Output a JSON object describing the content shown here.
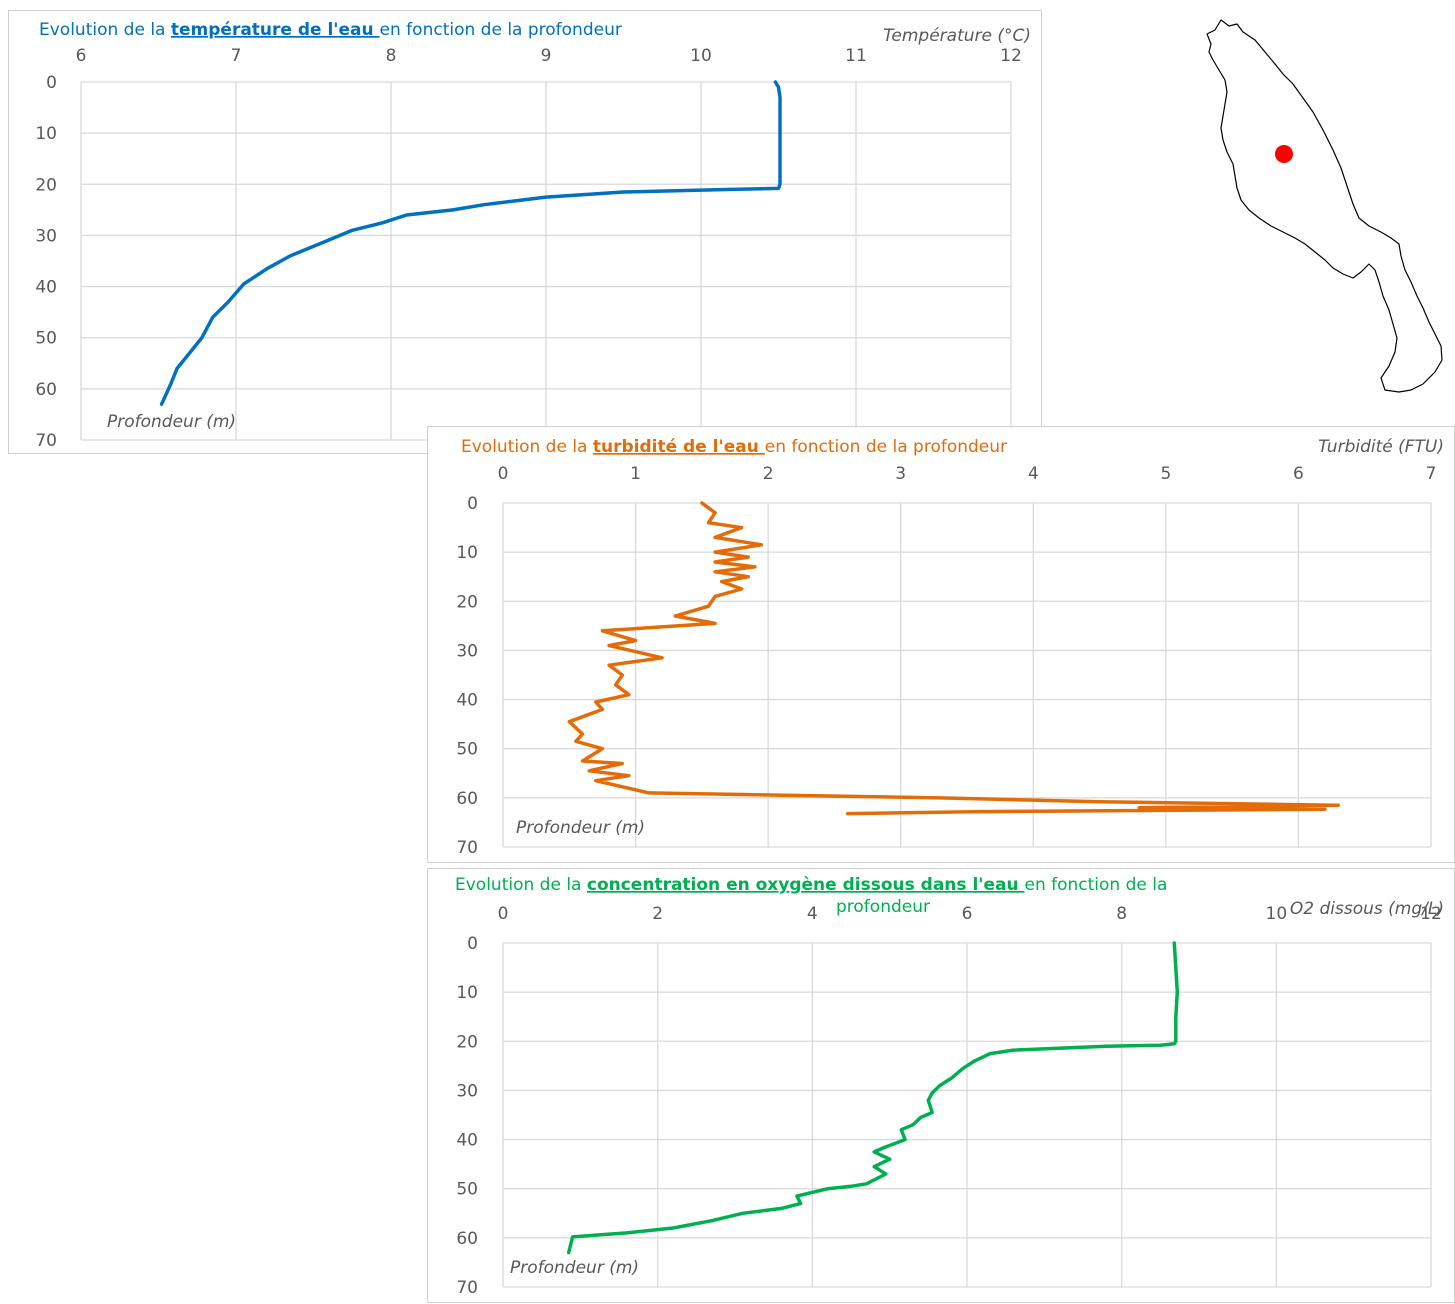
{
  "chart_data": [
    {
      "id": "temperature",
      "type": "line",
      "title_prefix": "Evolution de la ",
      "title_bold": "température de l'eau ",
      "title_suffix": "en fonction de la profondeur",
      "xlabel": "Température (°C)",
      "ylabel": "Profondeur (m)",
      "xlim": [
        6,
        12
      ],
      "ylim": [
        0,
        70
      ],
      "xticks": [
        6,
        7,
        8,
        9,
        10,
        11,
        12
      ],
      "yticks": [
        0,
        10,
        20,
        30,
        40,
        50,
        60,
        70
      ],
      "color": "#0070C0",
      "grid": true,
      "series": [
        {
          "x": [
            10.48,
            10.5,
            10.51,
            10.51,
            10.51,
            10.51,
            10.5,
            10.2,
            9.5,
            9.0,
            8.6,
            8.4,
            8.1,
            7.95,
            7.75,
            7.55,
            7.35,
            7.2,
            7.05,
            6.95,
            6.85,
            6.78,
            6.7,
            6.62,
            6.58,
            6.52
          ],
          "y": [
            0,
            1,
            3,
            10,
            15,
            20,
            20.8,
            21.0,
            21.5,
            22.5,
            24.0,
            25.0,
            26.0,
            27.5,
            29.0,
            31.5,
            34.0,
            36.5,
            39.5,
            43.0,
            46.0,
            50.0,
            53.0,
            56.0,
            59.0,
            63.0
          ]
        }
      ]
    },
    {
      "id": "turbidity",
      "type": "line",
      "title_prefix": "Evolution de la ",
      "title_bold": "turbidité de l'eau ",
      "title_suffix": "en fonction de la profondeur",
      "xlabel": "Turbidité (FTU)",
      "ylabel": "Profondeur (m)",
      "xlim": [
        0,
        7
      ],
      "ylim": [
        0,
        70
      ],
      "xticks": [
        0,
        1,
        2,
        3,
        4,
        5,
        6,
        7
      ],
      "yticks": [
        0,
        10,
        20,
        30,
        40,
        50,
        60,
        70
      ],
      "color": "#E36C09",
      "grid": true,
      "series": [
        {
          "x": [
            1.5,
            1.6,
            1.55,
            1.8,
            1.6,
            1.95,
            1.6,
            1.85,
            1.6,
            1.9,
            1.6,
            1.85,
            1.65,
            1.8,
            1.6,
            1.55,
            1.3,
            1.6,
            0.75,
            1.0,
            0.8,
            1.2,
            0.8,
            0.9,
            0.85,
            0.95,
            0.7,
            0.75,
            0.5,
            0.6,
            0.55,
            0.75,
            0.6,
            0.9,
            0.65,
            0.95,
            0.7,
            1.1,
            3.3,
            4.5,
            6.3,
            4.8,
            6.2,
            3.6,
            2.6
          ],
          "y": [
            0,
            2,
            4,
            5,
            7,
            8.5,
            10,
            11,
            12,
            13,
            14,
            15,
            16,
            17.5,
            19,
            21,
            23,
            24.5,
            26,
            28,
            29,
            31.5,
            33,
            35,
            37,
            39,
            40.5,
            42,
            44.5,
            47,
            48.5,
            50,
            52.5,
            53,
            54.5,
            55.5,
            56.5,
            59,
            60,
            60.8,
            61.5,
            62,
            62.3,
            62.8,
            63.2
          ]
        }
      ]
    },
    {
      "id": "oxygen",
      "type": "line",
      "title_prefix": "Evolution de la ",
      "title_bold": "concentration en oxygène dissous dans l'eau ",
      "title_suffix": "en fonction de la",
      "title_line2": "profondeur",
      "xlabel": "O2 dissous (mg/L)",
      "ylabel": "Profondeur (m)",
      "xlim": [
        0,
        12
      ],
      "ylim": [
        0,
        70
      ],
      "xticks": [
        0,
        2,
        4,
        6,
        8,
        10,
        12
      ],
      "yticks": [
        0,
        10,
        20,
        30,
        40,
        50,
        60,
        70
      ],
      "color": "#00B050",
      "grid": true,
      "series": [
        {
          "x": [
            8.68,
            8.7,
            8.72,
            8.7,
            8.7,
            8.68,
            8.5,
            7.8,
            6.6,
            6.3,
            6.1,
            5.95,
            5.8,
            5.65,
            5.55,
            5.5,
            5.55,
            5.4,
            5.3,
            5.15,
            5.2,
            4.95,
            4.8,
            5.0,
            4.8,
            4.95,
            4.7,
            4.5,
            4.2,
            3.8,
            3.85,
            3.6,
            3.1,
            2.7,
            2.2,
            1.6,
            0.9,
            0.85
          ],
          "y": [
            0,
            5,
            10,
            15,
            20,
            20.5,
            20.8,
            21.0,
            21.8,
            22.5,
            24.0,
            25.5,
            27.5,
            29.0,
            30.5,
            32.0,
            34.5,
            35.5,
            37.0,
            38.0,
            40.0,
            41.5,
            42.5,
            44.0,
            45.5,
            47.0,
            49.0,
            49.5,
            50.0,
            51.5,
            53.0,
            54.0,
            55.0,
            56.5,
            58.0,
            59.0,
            59.8,
            63.0
          ]
        }
      ]
    }
  ],
  "map": {
    "marker_color": "#FF0000",
    "outline_color": "#000000"
  }
}
